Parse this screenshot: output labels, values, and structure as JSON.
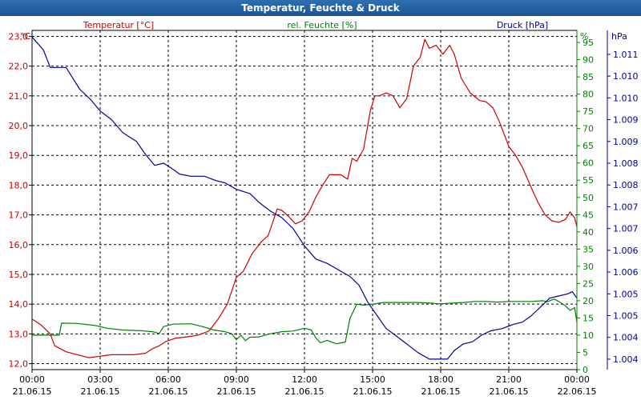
{
  "window": {
    "title": "Temperatur, Feuchte & Druck"
  },
  "chart_data": {
    "type": "line",
    "title": "Temperatur, Feuchte & Druck",
    "x_ticks": [
      {
        "time": "00:00",
        "date": "21.06.15"
      },
      {
        "time": "03:00",
        "date": "21.06.15"
      },
      {
        "time": "06:00",
        "date": "21.06.15"
      },
      {
        "time": "09:00",
        "date": "21.06.15"
      },
      {
        "time": "12:00",
        "date": "21.06.15"
      },
      {
        "time": "15:00",
        "date": "21.06.15"
      },
      {
        "time": "18:00",
        "date": "21.06.15"
      },
      {
        "time": "21:00",
        "date": "21.06.15"
      },
      {
        "time": "00:00",
        "date": "22.06.15"
      }
    ],
    "x_range_hours": [
      0,
      24
    ],
    "axes": {
      "temperature": {
        "label": "Temperatur [°C]",
        "unit": "°C",
        "color": "#cc0000",
        "range": [
          11.8,
          23.2
        ],
        "ticks": [
          "12,0",
          "13,0",
          "14,0",
          "15,0",
          "16,0",
          "17,0",
          "18,0",
          "19,0",
          "20,0",
          "21,0",
          "22,0",
          "23,0"
        ],
        "tick_values": [
          12,
          13,
          14,
          15,
          16,
          17,
          18,
          19,
          20,
          21,
          22,
          23
        ]
      },
      "humidity": {
        "label": "rel. Feuchte [%]",
        "unit": "%",
        "color": "#008000",
        "range": [
          0,
          98.5
        ],
        "ticks": [
          "0",
          "5",
          "10",
          "15",
          "20",
          "25",
          "30",
          "35",
          "40",
          "45",
          "50",
          "55",
          "60",
          "65",
          "70",
          "75",
          "80",
          "85",
          "90",
          "95"
        ],
        "tick_values": [
          0,
          5,
          10,
          15,
          20,
          25,
          30,
          35,
          40,
          45,
          50,
          55,
          60,
          65,
          70,
          75,
          80,
          85,
          90,
          95
        ]
      },
      "pressure": {
        "label": "Druck [hPa]",
        "unit": "hPa",
        "color": "#000099",
        "range": [
          1003.66,
          1011.45
        ],
        "ticks": [
          "1.004",
          "1.004",
          "1.005",
          "1.005",
          "1.006",
          "1.006",
          "1.007",
          "1.007",
          "1.008",
          "1.008",
          "1.009",
          "1.009",
          "1.010",
          "1.010",
          "1.011"
        ],
        "tick_values": [
          1003.9,
          1004.4,
          1004.9,
          1005.4,
          1005.9,
          1006.4,
          1006.9,
          1007.4,
          1007.9,
          1008.4,
          1008.9,
          1009.4,
          1009.9,
          1010.4,
          1010.9
        ]
      }
    },
    "series": [
      {
        "name": "Temperatur",
        "axis": "temperature",
        "color": "#cc0000",
        "points": [
          [
            0,
            13.5
          ],
          [
            0.4,
            13.3
          ],
          [
            0.8,
            13.0
          ],
          [
            1.0,
            12.6
          ],
          [
            1.5,
            12.4
          ],
          [
            2.0,
            12.3
          ],
          [
            2.5,
            12.2
          ],
          [
            3.0,
            12.25
          ],
          [
            3.5,
            12.3
          ],
          [
            4.0,
            12.3
          ],
          [
            4.5,
            12.3
          ],
          [
            5.0,
            12.35
          ],
          [
            5.3,
            12.5
          ],
          [
            5.6,
            12.6
          ],
          [
            5.9,
            12.75
          ],
          [
            6.3,
            12.85
          ],
          [
            6.8,
            12.9
          ],
          [
            7.3,
            12.95
          ],
          [
            7.8,
            13.1
          ],
          [
            8.2,
            13.5
          ],
          [
            8.6,
            14.0
          ],
          [
            9.0,
            14.9
          ],
          [
            9.3,
            15.1
          ],
          [
            9.7,
            15.7
          ],
          [
            10.1,
            16.1
          ],
          [
            10.4,
            16.3
          ],
          [
            10.8,
            17.2
          ],
          [
            11.0,
            17.15
          ],
          [
            11.3,
            16.95
          ],
          [
            11.6,
            16.7
          ],
          [
            11.9,
            16.8
          ],
          [
            12.2,
            17.1
          ],
          [
            12.5,
            17.6
          ],
          [
            12.8,
            18.0
          ],
          [
            13.1,
            18.35
          ],
          [
            13.6,
            18.35
          ],
          [
            13.9,
            18.2
          ],
          [
            14.1,
            18.9
          ],
          [
            14.3,
            18.8
          ],
          [
            14.6,
            19.2
          ],
          [
            14.9,
            20.5
          ],
          [
            15.1,
            21.0
          ],
          [
            15.3,
            21.0
          ],
          [
            15.6,
            21.1
          ],
          [
            15.9,
            21.0
          ],
          [
            16.2,
            20.6
          ],
          [
            16.5,
            20.9
          ],
          [
            16.8,
            22.0
          ],
          [
            17.1,
            22.3
          ],
          [
            17.3,
            22.9
          ],
          [
            17.5,
            22.6
          ],
          [
            17.8,
            22.7
          ],
          [
            18.1,
            22.4
          ],
          [
            18.4,
            22.7
          ],
          [
            18.6,
            22.4
          ],
          [
            18.9,
            21.6
          ],
          [
            19.3,
            21.1
          ],
          [
            19.7,
            20.85
          ],
          [
            20.0,
            20.8
          ],
          [
            20.3,
            20.6
          ],
          [
            20.6,
            20.1
          ],
          [
            21.0,
            19.3
          ],
          [
            21.3,
            19.0
          ],
          [
            21.6,
            18.6
          ],
          [
            22.0,
            17.9
          ],
          [
            22.3,
            17.4
          ],
          [
            22.6,
            17.0
          ],
          [
            22.9,
            16.8
          ],
          [
            23.2,
            16.75
          ],
          [
            23.5,
            16.85
          ],
          [
            23.7,
            17.1
          ],
          [
            23.9,
            16.9
          ],
          [
            24.0,
            16.6
          ]
        ]
      },
      {
        "name": "rel. Feuchte",
        "axis": "humidity",
        "color": "#008000",
        "points": [
          [
            0,
            10.0
          ],
          [
            0.8,
            10.0
          ],
          [
            1.2,
            10.0
          ],
          [
            1.3,
            13.5
          ],
          [
            2.0,
            13.4
          ],
          [
            2.8,
            12.8
          ],
          [
            3.3,
            12.0
          ],
          [
            4.0,
            11.5
          ],
          [
            4.8,
            11.3
          ],
          [
            5.3,
            11.0
          ],
          [
            5.6,
            10.5
          ],
          [
            5.8,
            12.5
          ],
          [
            6.2,
            13.2
          ],
          [
            7.0,
            13.3
          ],
          [
            7.5,
            12.5
          ],
          [
            8.0,
            11.5
          ],
          [
            8.5,
            11.0
          ],
          [
            8.8,
            10.4
          ],
          [
            9.0,
            8.7
          ],
          [
            9.2,
            10.0
          ],
          [
            9.4,
            8.4
          ],
          [
            9.6,
            9.4
          ],
          [
            10.0,
            9.5
          ],
          [
            10.5,
            10.4
          ],
          [
            11.0,
            11.0
          ],
          [
            11.5,
            11.2
          ],
          [
            12.0,
            12.0
          ],
          [
            12.3,
            11.5
          ],
          [
            12.5,
            9.2
          ],
          [
            12.7,
            7.8
          ],
          [
            13.0,
            8.5
          ],
          [
            13.4,
            7.5
          ],
          [
            13.8,
            8.0
          ],
          [
            14.0,
            14.8
          ],
          [
            14.3,
            19.0
          ],
          [
            14.6,
            18.7
          ],
          [
            15.0,
            19.0
          ],
          [
            15.5,
            19.5
          ],
          [
            16.0,
            19.5
          ],
          [
            16.5,
            19.5
          ],
          [
            17.0,
            19.5
          ],
          [
            17.5,
            19.3
          ],
          [
            18.0,
            19.1
          ],
          [
            18.5,
            19.3
          ],
          [
            19.0,
            19.5
          ],
          [
            19.5,
            19.8
          ],
          [
            20.0,
            19.8
          ],
          [
            20.5,
            19.6
          ],
          [
            21.0,
            19.8
          ],
          [
            21.5,
            19.8
          ],
          [
            22.0,
            19.8
          ],
          [
            22.5,
            20.0
          ],
          [
            22.7,
            19.7
          ],
          [
            23.0,
            20.5
          ],
          [
            23.2,
            19.8
          ],
          [
            23.5,
            18.5
          ],
          [
            23.7,
            17.2
          ],
          [
            23.9,
            18.0
          ],
          [
            24.0,
            13.8
          ]
        ]
      },
      {
        "name": "Druck",
        "axis": "pressure",
        "color": "#000099",
        "points": [
          [
            0,
            1011.3
          ],
          [
            0.5,
            1011.0
          ],
          [
            0.8,
            1010.6
          ],
          [
            1.2,
            1010.6
          ],
          [
            1.5,
            1010.6
          ],
          [
            1.8,
            1010.35
          ],
          [
            2.1,
            1010.1
          ],
          [
            2.6,
            1009.85
          ],
          [
            3.0,
            1009.6
          ],
          [
            3.5,
            1009.4
          ],
          [
            4.0,
            1009.1
          ],
          [
            4.6,
            1008.9
          ],
          [
            5.0,
            1008.6
          ],
          [
            5.4,
            1008.35
          ],
          [
            5.8,
            1008.4
          ],
          [
            6.1,
            1008.3
          ],
          [
            6.5,
            1008.15
          ],
          [
            7.0,
            1008.1
          ],
          [
            7.6,
            1008.1
          ],
          [
            8.1,
            1008.0
          ],
          [
            8.5,
            1007.95
          ],
          [
            9.0,
            1007.8
          ],
          [
            9.6,
            1007.7
          ],
          [
            10.0,
            1007.5
          ],
          [
            10.5,
            1007.3
          ],
          [
            11.0,
            1007.15
          ],
          [
            11.5,
            1006.9
          ],
          [
            12.0,
            1006.5
          ],
          [
            12.5,
            1006.2
          ],
          [
            13.0,
            1006.1
          ],
          [
            13.5,
            1005.95
          ],
          [
            14.0,
            1005.8
          ],
          [
            14.4,
            1005.6
          ],
          [
            14.8,
            1005.2
          ],
          [
            15.2,
            1004.9
          ],
          [
            15.6,
            1004.6
          ],
          [
            16.0,
            1004.45
          ],
          [
            16.5,
            1004.25
          ],
          [
            17.0,
            1004.05
          ],
          [
            17.5,
            1003.9
          ],
          [
            18.0,
            1003.9
          ],
          [
            18.3,
            1003.9
          ],
          [
            18.6,
            1004.1
          ],
          [
            19.0,
            1004.25
          ],
          [
            19.4,
            1004.3
          ],
          [
            19.8,
            1004.45
          ],
          [
            20.2,
            1004.55
          ],
          [
            20.7,
            1004.6
          ],
          [
            21.2,
            1004.7
          ],
          [
            21.6,
            1004.75
          ],
          [
            22.0,
            1004.9
          ],
          [
            22.4,
            1005.1
          ],
          [
            22.8,
            1005.3
          ],
          [
            23.2,
            1005.35
          ],
          [
            23.6,
            1005.4
          ],
          [
            23.8,
            1005.45
          ],
          [
            24.0,
            1005.3
          ]
        ]
      }
    ]
  }
}
